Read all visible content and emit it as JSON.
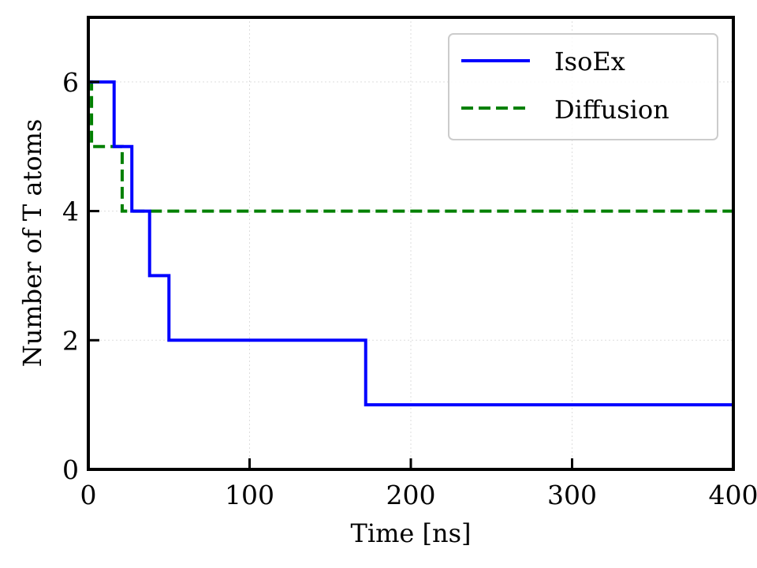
{
  "chart_data": {
    "type": "line",
    "xlabel": "Time [ns]",
    "ylabel": "Number of T atoms",
    "xlim": [
      0,
      400
    ],
    "ylim": [
      0,
      7
    ],
    "xticks": [
      0,
      100,
      200,
      300,
      400
    ],
    "yticks": [
      0,
      2,
      4,
      6
    ],
    "grid": true,
    "legend_position": "top-right",
    "step": true,
    "series": [
      {
        "name": "IsoEx",
        "color": "#0000ff",
        "style": "solid",
        "points": [
          [
            0,
            6
          ],
          [
            16,
            6
          ],
          [
            16,
            5
          ],
          [
            27,
            5
          ],
          [
            27,
            4
          ],
          [
            38,
            4
          ],
          [
            38,
            3
          ],
          [
            50,
            3
          ],
          [
            50,
            2
          ],
          [
            172,
            2
          ],
          [
            172,
            1
          ],
          [
            400,
            1
          ]
        ]
      },
      {
        "name": "Diffusion",
        "color": "#008000",
        "style": "dashed",
        "points": [
          [
            0,
            6
          ],
          [
            2,
            6
          ],
          [
            2,
            5
          ],
          [
            21,
            5
          ],
          [
            21,
            4
          ],
          [
            400,
            4
          ]
        ]
      }
    ]
  }
}
